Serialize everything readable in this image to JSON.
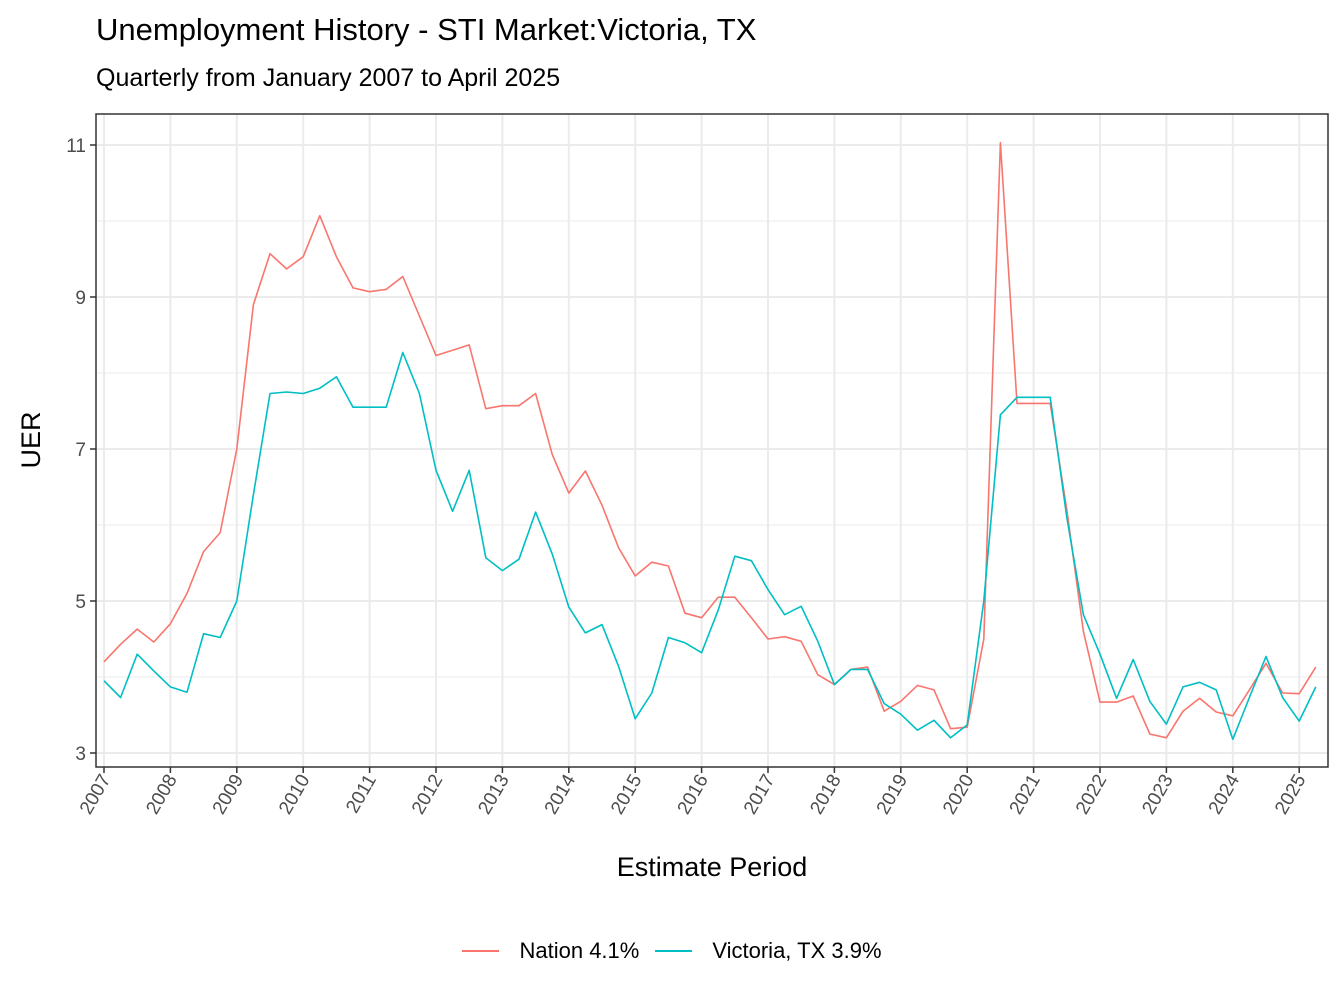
{
  "chart_data": {
    "type": "line",
    "title": "Unemployment History - STI Market:Victoria, TX",
    "subtitle": "Quarterly from January 2007 to April 2025",
    "xlabel": "Estimate Period",
    "ylabel": "UER",
    "ylim": [
      2.85,
      11.4
    ],
    "yticks": [
      3,
      5,
      7,
      9,
      11
    ],
    "xticks": [
      "2007",
      "2008",
      "2009",
      "2010",
      "2011",
      "2012",
      "2013",
      "2014",
      "2015",
      "2016",
      "2017",
      "2018",
      "2019",
      "2020",
      "2021",
      "2022",
      "2023",
      "2024",
      "2025"
    ],
    "grid": true,
    "legend_position": "bottom",
    "x_start": 2007.0,
    "x_step": 0.25,
    "series": [
      {
        "name": "Nation 4.1%",
        "color": "#F8766D",
        "values": [
          4.2,
          4.43,
          4.63,
          4.46,
          4.7,
          5.1,
          5.65,
          5.9,
          7.0,
          8.9,
          9.57,
          9.37,
          9.53,
          10.07,
          9.53,
          9.12,
          9.07,
          9.1,
          9.27,
          8.75,
          8.23,
          8.3,
          8.37,
          7.53,
          7.57,
          7.57,
          7.73,
          6.93,
          6.42,
          6.71,
          6.26,
          5.7,
          5.33,
          5.51,
          5.46,
          4.84,
          4.78,
          5.05,
          5.05,
          4.78,
          4.5,
          4.53,
          4.47,
          4.03,
          3.9,
          4.1,
          4.13,
          3.55,
          3.68,
          3.89,
          3.83,
          3.32,
          3.34,
          4.5,
          11.03,
          7.6,
          7.6,
          7.6,
          6.2,
          4.6,
          3.67,
          3.67,
          3.75,
          3.25,
          3.2,
          3.55,
          3.72,
          3.54,
          3.49,
          3.83,
          4.18,
          3.79,
          3.78,
          4.13
        ]
      },
      {
        "name": "Victoria, TX 3.9%",
        "color": "#00BFC4",
        "values": [
          3.95,
          3.73,
          4.3,
          4.08,
          3.87,
          3.8,
          4.57,
          4.52,
          5.0,
          6.4,
          7.73,
          7.75,
          7.73,
          7.8,
          7.95,
          7.55,
          7.55,
          7.55,
          8.27,
          7.73,
          6.72,
          6.18,
          6.72,
          5.57,
          5.4,
          5.55,
          6.17,
          5.62,
          4.92,
          4.58,
          4.69,
          4.14,
          3.45,
          3.79,
          4.52,
          4.45,
          4.32,
          4.88,
          5.59,
          5.53,
          5.15,
          4.82,
          4.93,
          4.47,
          3.9,
          4.1,
          4.1,
          3.65,
          3.51,
          3.3,
          3.43,
          3.2,
          3.37,
          5.0,
          7.45,
          7.68,
          7.68,
          7.68,
          6.1,
          4.82,
          4.3,
          3.72,
          4.23,
          3.68,
          3.38,
          3.87,
          3.93,
          3.83,
          3.18,
          3.73,
          4.27,
          3.73,
          3.42,
          3.87
        ]
      }
    ]
  },
  "legend": {
    "items": [
      {
        "label": "Nation 4.1%",
        "color": "#F8766D"
      },
      {
        "label": "Victoria, TX 3.9%",
        "color": "#00BFC4"
      }
    ]
  }
}
